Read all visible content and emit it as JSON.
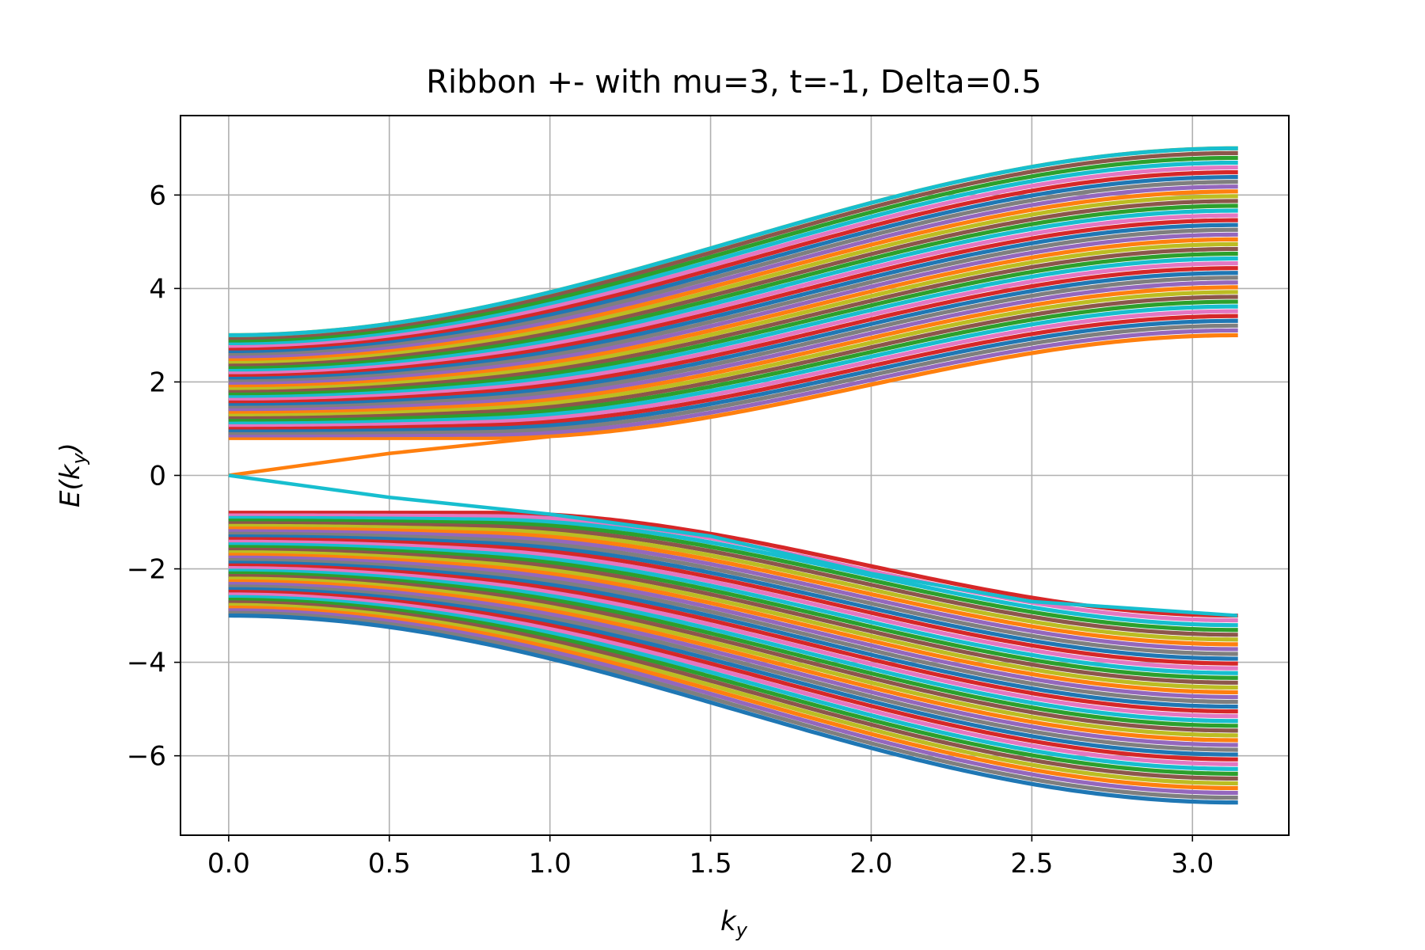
{
  "chart_data": {
    "type": "line",
    "title": "Ribbon +- with mu=3, t=-1, Delta=0.5",
    "xlabel": {
      "base": "k",
      "sub": "y"
    },
    "ylabel": {
      "base": "E(k",
      "sub": "y",
      "close": ")"
    },
    "xlim": [
      -0.15,
      3.3
    ],
    "ylim": [
      -7.7,
      7.7
    ],
    "xticks": [
      0.0,
      0.5,
      1.0,
      1.5,
      2.0,
      2.5,
      3.0
    ],
    "xtick_labels": [
      "0.0",
      "0.5",
      "1.0",
      "1.5",
      "2.0",
      "2.5",
      "3.0"
    ],
    "yticks": [
      -6,
      -4,
      -2,
      0,
      2,
      4,
      6
    ],
    "ytick_labels": [
      "−6",
      "−4",
      "−2",
      "0",
      "2",
      "4",
      "6"
    ],
    "grid": true,
    "legend": "none",
    "k_range": [
      0,
      3.14159
    ],
    "colors": [
      "#1f77b4",
      "#ff7f0e",
      "#2ca02c",
      "#d62728",
      "#9467bd",
      "#8c564b",
      "#e377c2",
      "#7f7f7f",
      "#bcbd22",
      "#17becf"
    ],
    "series": [
      {
        "values": [
          {
            "x": 0.0,
            "y": 3.0
          },
          {
            "x": 0.5,
            "y": 3.25
          },
          {
            "x": 1.0,
            "y": 4.0
          },
          {
            "x": 1.5,
            "y": 5.0
          },
          {
            "x": 2.0,
            "y": 6.0
          },
          {
            "x": 2.5,
            "y": 6.7
          },
          {
            "x": 3.14,
            "y": 7.0
          }
        ]
      },
      {
        "values": [
          {
            "x": 0.0,
            "y": 0.8
          },
          {
            "x": 0.5,
            "y": 0.8
          },
          {
            "x": 1.0,
            "y": 0.8
          },
          {
            "x": 1.5,
            "y": 1.3
          },
          {
            "x": 2.0,
            "y": 2.1
          },
          {
            "x": 2.5,
            "y": 2.7
          },
          {
            "x": 3.14,
            "y": 3.0
          }
        ]
      },
      {
        "values": [
          {
            "x": 0.0,
            "y": 0.0
          },
          {
            "x": 0.5,
            "y": 0.47
          },
          {
            "x": 1.0,
            "y": 0.83
          }
        ]
      },
      {
        "values": [
          {
            "x": 0.0,
            "y": 0.0
          },
          {
            "x": 0.5,
            "y": -0.47
          },
          {
            "x": 1.0,
            "y": -0.83
          },
          {
            "x": 1.5,
            "y": -1.3
          },
          {
            "x": 2.0,
            "y": -2.1
          },
          {
            "x": 2.5,
            "y": -2.7
          },
          {
            "x": 3.14,
            "y": -3.0
          }
        ]
      },
      {
        "values": [
          {
            "x": 0.0,
            "y": -0.8
          },
          {
            "x": 0.5,
            "y": -0.8
          },
          {
            "x": 1.0,
            "y": -0.8
          },
          {
            "x": 1.5,
            "y": -1.3
          },
          {
            "x": 2.0,
            "y": -2.1
          },
          {
            "x": 2.5,
            "y": -2.7
          },
          {
            "x": 3.14,
            "y": -3.0
          }
        ]
      },
      {
        "values": [
          {
            "x": 0.0,
            "y": -3.0
          },
          {
            "x": 0.5,
            "y": -3.25
          },
          {
            "x": 1.0,
            "y": -4.0
          },
          {
            "x": 1.5,
            "y": -5.0
          },
          {
            "x": 2.0,
            "y": -6.0
          },
          {
            "x": 2.5,
            "y": -6.7
          },
          {
            "x": 3.14,
            "y": -7.0
          }
        ]
      }
    ],
    "bands": {
      "count_per_band": 40,
      "upper": {
        "inner_edge": "0.8 at k=0..0.8, rising to 3.0 at k=π",
        "outer_edge": "3.0 at k=0 rising to 7.0 at k=π"
      },
      "lower": {
        "inner_edge": "-0.8 at k=0..0.8, falling to -3.0 at k=π",
        "outer_edge": "-3.0 at k=0 falling to -7.0 at k=π"
      }
    },
    "edge_states": [
      {
        "color": "#ff7f0e",
        "description": "from 0 at k=0 rising linearly into upper band near k≈0.8"
      },
      {
        "color": "#17becf",
        "description": "from 0 at k=0 falling, tracking lower band inner edge"
      }
    ]
  }
}
